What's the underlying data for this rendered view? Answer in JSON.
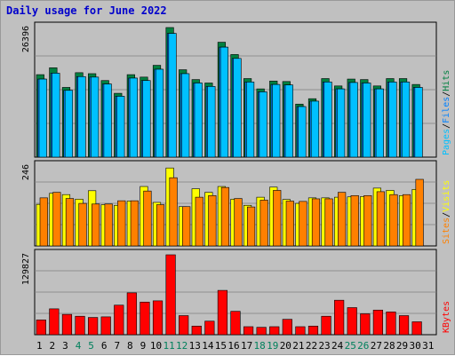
{
  "title": "Daily usage for June 2022",
  "colors": {
    "title": "#0000cc",
    "background": "#c0c0c0",
    "panel": "#c0c0c0",
    "hits": "#008040",
    "files": "#0080ff",
    "pages": "#00c0ff",
    "visits": "#ffff00",
    "sites": "#ff8000",
    "kbytes": "#ff0000",
    "weekend_label": "#00805c",
    "weekday_label": "#000000"
  },
  "chart_data": [
    {
      "type": "bar",
      "panel": "hits-files-pages",
      "ymax_label": "26396",
      "ylim": [
        0,
        26396
      ],
      "side_labels": [
        "Pages",
        "/",
        "Files",
        "/",
        "Hits"
      ],
      "categories": [
        "1",
        "2",
        "3",
        "4",
        "5",
        "6",
        "7",
        "8",
        "9",
        "10",
        "11",
        "12",
        "13",
        "14",
        "15",
        "16",
        "17",
        "18",
        "19",
        "20",
        "21",
        "22",
        "23",
        "24",
        "25",
        "26",
        "27",
        "28",
        "29",
        "30",
        "31"
      ],
      "weekend_days": [
        4,
        5,
        11,
        12,
        18,
        19,
        25,
        26
      ],
      "series": [
        {
          "name": "Hits",
          "values": [
            16800,
            18200,
            14200,
            17200,
            17000,
            15600,
            13000,
            16800,
            16300,
            18700,
            26396,
            17800,
            15800,
            15100,
            23400,
            20900,
            16000,
            13900,
            15500,
            15400,
            10800,
            11900,
            16000,
            14500,
            15900,
            15800,
            14500,
            16000,
            16000,
            14800,
            0
          ]
        },
        {
          "name": "Files",
          "values": [
            15900,
            17100,
            13600,
            16400,
            16300,
            14900,
            12400,
            16100,
            15600,
            17900,
            25200,
            17000,
            15100,
            14400,
            22400,
            20100,
            15300,
            13300,
            14800,
            14700,
            10300,
            11400,
            15300,
            13900,
            15200,
            15100,
            13900,
            15300,
            15300,
            14200,
            0
          ]
        },
        {
          "name": "Pages",
          "values": [
            15900,
            17100,
            13600,
            16400,
            16300,
            14900,
            12400,
            16100,
            15600,
            17900,
            25200,
            17000,
            15100,
            14400,
            22400,
            20100,
            15300,
            13300,
            14800,
            14700,
            10300,
            11400,
            15300,
            13900,
            15200,
            15100,
            13900,
            15300,
            15300,
            14200,
            0
          ]
        }
      ]
    },
    {
      "type": "bar",
      "panel": "visits-sites",
      "ymax_label": "246",
      "ylim": [
        0,
        246
      ],
      "side_labels": [
        "Sites",
        "/",
        "Visits"
      ],
      "categories": [
        "1",
        "2",
        "3",
        "4",
        "5",
        "6",
        "7",
        "8",
        "9",
        "10",
        "11",
        "12",
        "13",
        "14",
        "15",
        "16",
        "17",
        "18",
        "19",
        "20",
        "21",
        "22",
        "23",
        "24",
        "25",
        "26",
        "27",
        "28",
        "29",
        "30",
        "31"
      ],
      "series": [
        {
          "name": "Visits",
          "values": [
            128,
            162,
            158,
            144,
            170,
            127,
            125,
            138,
            183,
            134,
            240,
            121,
            176,
            165,
            183,
            144,
            125,
            150,
            181,
            143,
            131,
            148,
            148,
            150,
            151,
            152,
            178,
            171,
            155,
            174,
            0
          ]
        },
        {
          "name": "Sites",
          "values": [
            148,
            165,
            146,
            131,
            129,
            129,
            139,
            139,
            169,
            127,
            210,
            121,
            150,
            155,
            180,
            146,
            120,
            141,
            171,
            138,
            137,
            145,
            145,
            165,
            155,
            155,
            167,
            158,
            158,
            205,
            0
          ]
        }
      ]
    },
    {
      "type": "bar",
      "panel": "kbytes",
      "ymax_label": "129827",
      "ylim": [
        0,
        129827
      ],
      "side_labels": [
        "KBytes"
      ],
      "categories": [
        "1",
        "2",
        "3",
        "4",
        "5",
        "6",
        "7",
        "8",
        "9",
        "10",
        "11",
        "12",
        "13",
        "14",
        "15",
        "16",
        "17",
        "18",
        "19",
        "20",
        "21",
        "22",
        "23",
        "24",
        "25",
        "26",
        "27",
        "28",
        "29",
        "30",
        "31"
      ],
      "series": [
        {
          "name": "KBytes",
          "values": [
            24000,
            42000,
            33000,
            30000,
            28000,
            29000,
            48000,
            68000,
            53000,
            55000,
            129827,
            31000,
            14000,
            22000,
            72000,
            38000,
            13000,
            12000,
            13000,
            25000,
            13000,
            14000,
            30000,
            56000,
            44000,
            34000,
            40000,
            37000,
            31000,
            21000,
            0
          ]
        }
      ]
    }
  ]
}
